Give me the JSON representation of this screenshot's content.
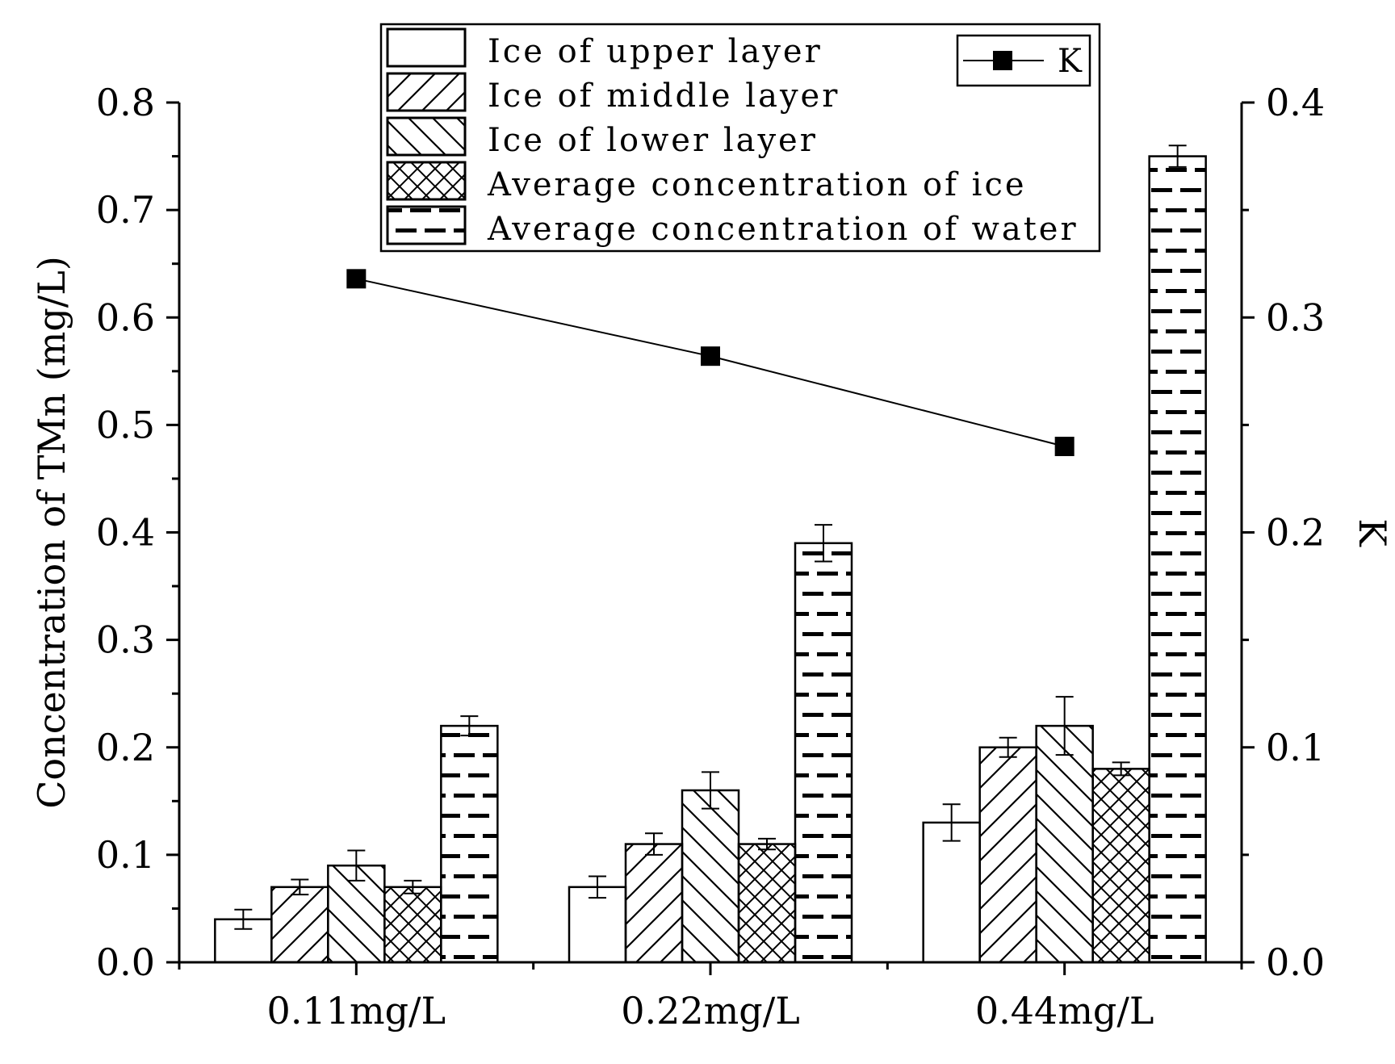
{
  "chart_data": {
    "type": "bar",
    "categories": [
      "0.11mg/L",
      "0.22mg/L",
      "0.44mg/L"
    ],
    "ylabel": "Concentration of TMn (mg/L)",
    "y2label": "K",
    "ylim": [
      0.0,
      0.8
    ],
    "y2lim": [
      0.0,
      0.4
    ],
    "yticks": [
      "0.0",
      "0.1",
      "0.2",
      "0.3",
      "0.4",
      "0.5",
      "0.6",
      "0.7",
      "0.8"
    ],
    "y2ticks": [
      "0.0",
      "0.1",
      "0.2",
      "0.3",
      "0.4"
    ],
    "grid": false,
    "legend_position": "top",
    "series": [
      {
        "name": "Ice of upper layer",
        "pattern": "empty",
        "values": [
          0.04,
          0.07,
          0.13
        ],
        "errors": [
          0.009,
          0.01,
          0.017
        ]
      },
      {
        "name": "Ice of middle layer",
        "pattern": "forward-diagonal",
        "values": [
          0.07,
          0.11,
          0.2
        ],
        "errors": [
          0.007,
          0.01,
          0.009
        ]
      },
      {
        "name": "Ice of lower layer",
        "pattern": "back-diagonal",
        "values": [
          0.09,
          0.16,
          0.22
        ],
        "errors": [
          0.014,
          0.017,
          0.027
        ]
      },
      {
        "name": "Average concentration of ice",
        "pattern": "crosshatch",
        "values": [
          0.07,
          0.11,
          0.18
        ],
        "errors": [
          0.006,
          0.005,
          0.006
        ]
      },
      {
        "name": "Average concentration of water",
        "pattern": "dashes",
        "values": [
          0.22,
          0.39,
          0.75
        ],
        "errors": [
          0.009,
          0.017,
          0.01
        ]
      }
    ],
    "line_series": {
      "name": "K",
      "axis": "right",
      "marker": "square",
      "values": [
        0.318,
        0.282,
        0.24
      ]
    }
  },
  "colors": {
    "stroke": "#000000",
    "fill": "#ffffff"
  }
}
